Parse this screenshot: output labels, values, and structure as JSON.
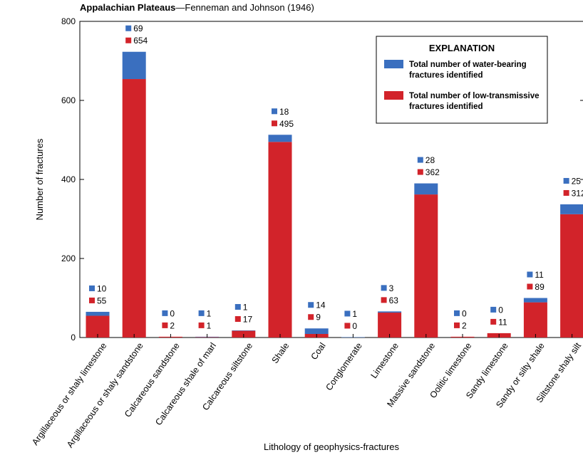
{
  "chart_data": {
    "type": "bar",
    "stacked": true,
    "title_bold": "Appalachian Plateaus",
    "title_rest": "—Fenneman and Johnson (1946)",
    "xlabel": "Lithology of geophysics-fractures",
    "ylabel": "Number of fractures",
    "ylim": [
      0,
      800
    ],
    "yticks": [
      "0",
      "200",
      "400",
      "600",
      "800"
    ],
    "categories": [
      "Argillaceous or shaly limestone",
      "Argillaceous or shaly sandstone",
      "Calcareous sandstone",
      "Calcareous shale of marl",
      "Calcareous siltstone",
      "Shale",
      "Coal",
      "Conglomerate",
      "Limestone",
      "Massive sandstone",
      "Oolitic limestone",
      "Sandy limestone",
      "Sandy or silty shale",
      "Siltstone shaly silt"
    ],
    "series": [
      {
        "name": "Total number of low-transmissive fractures identified",
        "color": "#d2232a",
        "values": [
          55,
          654,
          2,
          1,
          17,
          495,
          9,
          0,
          63,
          362,
          2,
          11,
          89,
          312
        ],
        "labels": [
          "55",
          "654",
          "2",
          "1",
          "17",
          "495",
          "9",
          "0",
          "63",
          "362",
          "2",
          "11",
          "89",
          "312"
        ]
      },
      {
        "name": "Total number of water-bearing fractures identified",
        "color": "#3a6fbf",
        "values": [
          10,
          69,
          0,
          1,
          1,
          18,
          14,
          1,
          3,
          28,
          0,
          0,
          11,
          25
        ],
        "labels": [
          "10",
          "69",
          "0",
          "1",
          "1",
          "18",
          "14",
          "1",
          "3",
          "28",
          "0",
          "0",
          "11",
          "25"
        ]
      }
    ],
    "legend": {
      "title": "EXPLANATION",
      "position": "top-right",
      "water_line1": "Total number of water-bearing",
      "water_line2": "fractures identified",
      "low_line1": "Total number of low-transmissive",
      "low_line2": "fractures identified"
    }
  }
}
